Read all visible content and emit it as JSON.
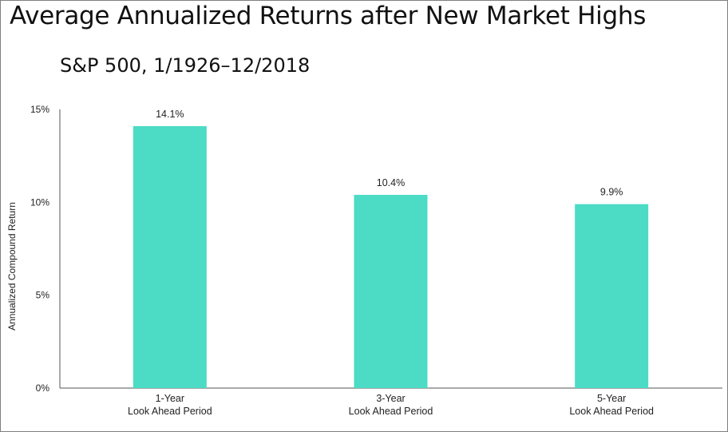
{
  "chart_data": {
    "type": "bar",
    "title": "Average Annualized Returns after New Market Highs",
    "subtitle": "S&P 500, 1/1926–12/2018",
    "ylabel": "Annualized Compound Return",
    "xlabel": "",
    "categories": [
      [
        "1-Year",
        "Look Ahead Period"
      ],
      [
        "3-Year",
        "Look Ahead Period"
      ],
      [
        "5-Year",
        "Look Ahead Period"
      ]
    ],
    "values": [
      14.1,
      10.4,
      9.9
    ],
    "data_labels": [
      "14.1%",
      "10.4%",
      "9.9%"
    ],
    "ylim": [
      0,
      15
    ],
    "yticks": [
      0,
      5,
      10,
      15
    ],
    "ytick_labels": [
      "0%",
      "5%",
      "10%",
      "15%"
    ],
    "grid": false,
    "legend": "none",
    "colors": {
      "bar": "#4cdbc4",
      "axis": "#555555"
    }
  }
}
